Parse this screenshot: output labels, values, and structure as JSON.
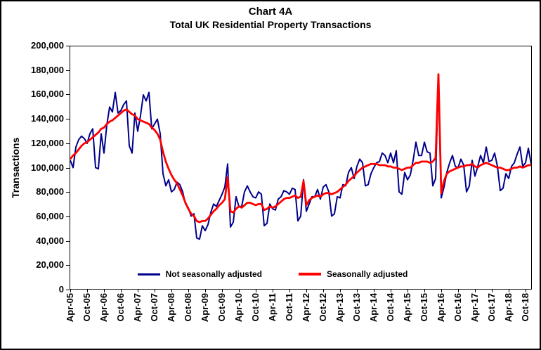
{
  "chart_data": {
    "type": "line",
    "title": "Chart 4A",
    "subtitle": "Total UK Residential Property Transactions",
    "ylabel": "Transactions",
    "ylim": [
      0,
      200000
    ],
    "y_tick_step": 20000,
    "grid": false,
    "legend_position": "bottom-inside",
    "y_tick_labels": [
      "0",
      "20,000",
      "40,000",
      "60,000",
      "80,000",
      "100,000",
      "120,000",
      "140,000",
      "160,000",
      "180,000",
      "200,000"
    ],
    "x_tick_labels": [
      "Apr-05",
      "Oct-05",
      "Apr-06",
      "Oct-06",
      "Apr-07",
      "Oct-07",
      "Apr-08",
      "Oct-08",
      "Apr-09",
      "Oct-09",
      "Apr-10",
      "Oct-10",
      "Apr-11",
      "Oct-11",
      "Apr-12",
      "Oct-12",
      "Apr-13",
      "Oct-13",
      "Apr-14",
      "Oct-14",
      "Apr-15",
      "Oct-15",
      "Apr-16",
      "Oct-16",
      "Apr-17",
      "Oct-17",
      "Apr-18",
      "Oct-18"
    ],
    "x_points_per_tick": 6,
    "series": [
      {
        "name": "Not seasonally adjusted",
        "color": "#00008B",
        "stroke_width": 2,
        "values": [
          106000,
          100000,
          117000,
          123000,
          126000,
          124000,
          120000,
          128000,
          132000,
          100000,
          99000,
          128000,
          112000,
          135000,
          150000,
          146000,
          162000,
          145000,
          147000,
          152000,
          155000,
          118000,
          112000,
          145000,
          130000,
          143000,
          160000,
          155000,
          162000,
          132000,
          136000,
          140000,
          128000,
          95000,
          85000,
          90000,
          80000,
          82000,
          88000,
          86000,
          80000,
          70000,
          67000,
          60000,
          62000,
          42000,
          41000,
          52000,
          48000,
          53000,
          63000,
          70000,
          68000,
          73000,
          78000,
          84000,
          103000,
          51000,
          55000,
          76000,
          68000,
          68000,
          80000,
          85000,
          80000,
          76000,
          75000,
          80000,
          78000,
          52000,
          54000,
          70000,
          66000,
          65000,
          74000,
          76000,
          81000,
          80000,
          78000,
          83000,
          82000,
          56000,
          60000,
          90000,
          64000,
          70000,
          76000,
          76000,
          82000,
          74000,
          84000,
          86000,
          80000,
          60000,
          62000,
          76000,
          75000,
          86000,
          85000,
          96000,
          100000,
          91000,
          101000,
          107000,
          104000,
          85000,
          86000,
          95000,
          100000,
          104000,
          105000,
          112000,
          110000,
          104000,
          112000,
          104000,
          114000,
          80000,
          78000,
          96000,
          90000,
          94000,
          106000,
          121000,
          110000,
          110000,
          121000,
          113000,
          112000,
          85000,
          91000,
          173000,
          75000,
          84000,
          96000,
          104000,
          110000,
          101000,
          100000,
          107000,
          102000,
          80000,
          85000,
          106000,
          93000,
          101000,
          110000,
          104000,
          117000,
          105000,
          106000,
          112000,
          101000,
          81000,
          83000,
          95000,
          91000,
          101000,
          104000,
          111000,
          117000,
          101000,
          104000,
          116000,
          103000
        ]
      },
      {
        "name": "Seasonally adjusted",
        "color": "#FF0000",
        "stroke_width": 2.8,
        "values": [
          107000,
          110000,
          112000,
          115000,
          118000,
          120000,
          121000,
          123000,
          125000,
          127000,
          129000,
          132000,
          133000,
          136000,
          138000,
          139000,
          141000,
          143000,
          145000,
          147000,
          148000,
          146000,
          144000,
          143000,
          140000,
          139000,
          138000,
          137000,
          136000,
          133000,
          131000,
          128000,
          123000,
          113000,
          105000,
          99000,
          94000,
          90000,
          87000,
          82000,
          77000,
          71000,
          66000,
          62000,
          60000,
          56000,
          55000,
          56000,
          56000,
          58000,
          61000,
          64000,
          66000,
          69000,
          71000,
          74000,
          92000,
          64000,
          63000,
          66000,
          68000,
          67000,
          69000,
          71000,
          71000,
          70000,
          69000,
          70000,
          70000,
          65000,
          66000,
          68000,
          67000,
          68000,
          70000,
          72000,
          74000,
          75000,
          75000,
          76000,
          77000,
          75000,
          76000,
          89000,
          69000,
          73000,
          75000,
          76000,
          77000,
          76000,
          78000,
          79000,
          79000,
          78000,
          79000,
          80000,
          82000,
          84000,
          86000,
          89000,
          91000,
          93000,
          96000,
          98000,
          100000,
          101000,
          102000,
          103000,
          103000,
          103000,
          102000,
          102000,
          102000,
          101000,
          101000,
          100000,
          100000,
          99000,
          98000,
          99000,
          100000,
          100000,
          102000,
          104000,
          104000,
          105000,
          105000,
          105000,
          104000,
          105000,
          108000,
          177000,
          79000,
          89000,
          95000,
          97000,
          98000,
          99000,
          100000,
          101000,
          101000,
          102000,
          102000,
          103000,
          101000,
          100000,
          102000,
          103000,
          104000,
          103000,
          102000,
          101000,
          100000,
          100000,
          99000,
          98000,
          98000,
          99000,
          100000,
          100000,
          101000,
          100000,
          101000,
          102000,
          102000
        ]
      }
    ]
  }
}
